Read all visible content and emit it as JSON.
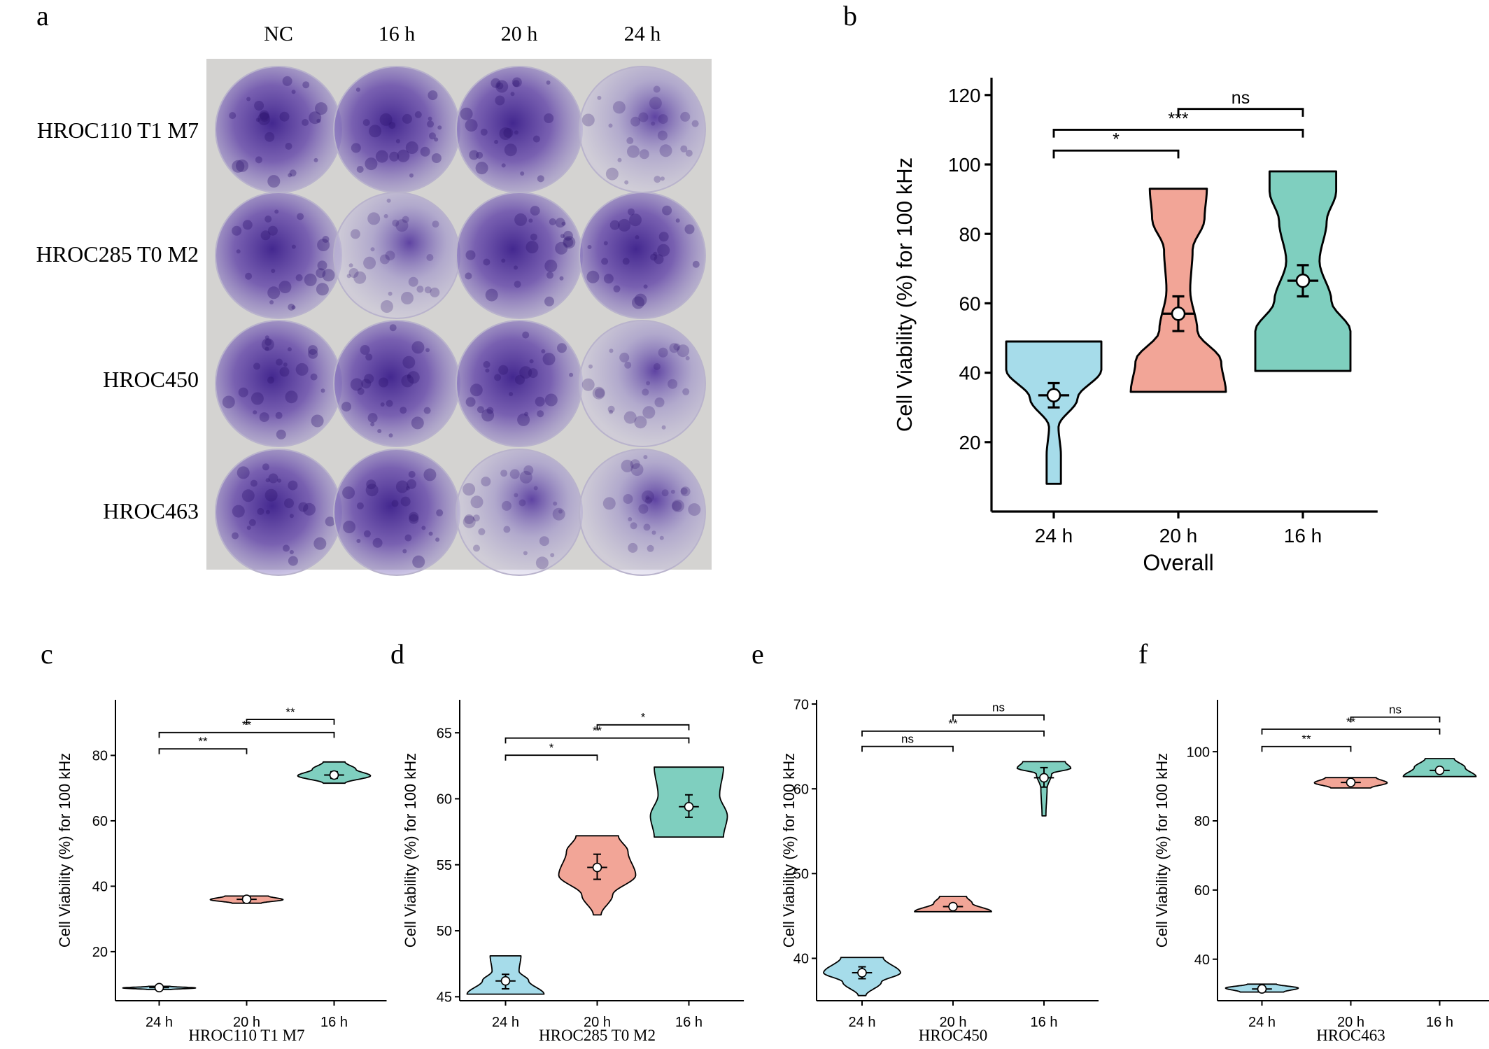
{
  "panel_letters": [
    "a",
    "b",
    "c",
    "d",
    "e",
    "f"
  ],
  "photo": {
    "columns": [
      "NC",
      "16 h",
      "20 h",
      "24 h"
    ],
    "rows": [
      "HROC110 T1 M7",
      "HROC285 T0 M2",
      "HROC450",
      "HROC463"
    ],
    "well_color": "#4a2a9a"
  },
  "colors": {
    "24 h": "#a6dcea",
    "20 h": "#f2a597",
    "16 h": "#7fcfbf"
  },
  "chart_data": [
    {
      "id": "b",
      "type": "violin",
      "categories": [
        "24 h",
        "20 h",
        "16 h"
      ],
      "ylabel": "Cell Viability (%) for 100 kHz",
      "xlabel": "Overall",
      "ylim": [
        0,
        125
      ],
      "yticks": [
        20,
        40,
        60,
        80,
        100,
        120
      ],
      "violins": [
        {
          "min": 8,
          "max": 49,
          "mean": 33.5,
          "lo": 30,
          "hi": 37,
          "shape": [
            [
              0,
              0.15
            ],
            [
              0.2,
              0.15
            ],
            [
              0.4,
              0.1
            ],
            [
              0.6,
              0.5
            ],
            [
              0.8,
              1.0
            ],
            [
              1,
              1.0
            ]
          ]
        },
        {
          "min": 34.5,
          "max": 93,
          "mean": 57,
          "lo": 52,
          "hi": 62,
          "shape": [
            [
              0,
              1.0
            ],
            [
              0.15,
              0.9
            ],
            [
              0.3,
              0.4
            ],
            [
              0.5,
              0.25
            ],
            [
              0.7,
              0.3
            ],
            [
              0.85,
              0.55
            ],
            [
              1,
              0.6
            ]
          ]
        },
        {
          "min": 40.5,
          "max": 98,
          "mean": 66.5,
          "lo": 62,
          "hi": 71,
          "shape": [
            [
              0,
              1.0
            ],
            [
              0.2,
              1.0
            ],
            [
              0.35,
              0.6
            ],
            [
              0.55,
              0.35
            ],
            [
              0.75,
              0.5
            ],
            [
              0.9,
              0.7
            ],
            [
              1,
              0.7
            ]
          ]
        }
      ],
      "significance": [
        {
          "from": 1,
          "to": 2,
          "label": "ns",
          "y": 116
        },
        {
          "from": 0,
          "to": 2,
          "label": "***",
          "y": 110
        },
        {
          "from": 0,
          "to": 1,
          "label": "*",
          "y": 104
        }
      ]
    },
    {
      "id": "c",
      "type": "violin",
      "categories": [
        "24 h",
        "20 h",
        "16 h"
      ],
      "ylabel": "Cell Viability (%) for 100 kHz",
      "xlabel": "HROC110 T1 M7",
      "ylim": [
        5,
        97
      ],
      "yticks": [
        20,
        40,
        60,
        80
      ],
      "violins": [
        {
          "min": 8.4,
          "max": 9.4,
          "mean": 9,
          "lo": 8.7,
          "hi": 9.3,
          "shape": [
            [
              0,
              0.3
            ],
            [
              0.5,
              1.0
            ],
            [
              1,
              0.3
            ]
          ]
        },
        {
          "min": 34.8,
          "max": 37,
          "mean": 36,
          "lo": 35.6,
          "hi": 36.4,
          "shape": [
            [
              0,
              0.4
            ],
            [
              0.5,
              1.0
            ],
            [
              1,
              0.6
            ]
          ]
        },
        {
          "min": 71.5,
          "max": 78,
          "mean": 74,
          "lo": 73,
          "hi": 75,
          "shape": [
            [
              0,
              0.3
            ],
            [
              0.35,
              1.0
            ],
            [
              0.65,
              0.6
            ],
            [
              1,
              0.3
            ]
          ]
        }
      ],
      "significance": [
        {
          "from": 1,
          "to": 2,
          "label": "**",
          "y": 91
        },
        {
          "from": 0,
          "to": 2,
          "label": "**",
          "y": 87
        },
        {
          "from": 0,
          "to": 1,
          "label": "**",
          "y": 82
        }
      ]
    },
    {
      "id": "d",
      "type": "violin",
      "categories": [
        "24 h",
        "20 h",
        "16 h"
      ],
      "ylabel": "Cell Viability (%) for 100 kHz",
      "xlabel": "HROC285 T0 M2",
      "ylim": [
        44.7,
        67.5
      ],
      "yticks": [
        45,
        50,
        55,
        60,
        65
      ],
      "violins": [
        {
          "min": 45.2,
          "max": 48.1,
          "mean": 46.2,
          "lo": 45.6,
          "hi": 46.7,
          "shape": [
            [
              0,
              1.0
            ],
            [
              0.35,
              0.6
            ],
            [
              0.6,
              0.35
            ],
            [
              1,
              0.4
            ]
          ]
        },
        {
          "min": 51.2,
          "max": 57.2,
          "mean": 54.8,
          "lo": 53.9,
          "hi": 55.8,
          "shape": [
            [
              0,
              0.1
            ],
            [
              0.25,
              0.4
            ],
            [
              0.5,
              1.0
            ],
            [
              0.8,
              0.8
            ],
            [
              1,
              0.55
            ]
          ]
        },
        {
          "min": 57.1,
          "max": 62.4,
          "mean": 59.4,
          "lo": 58.6,
          "hi": 60.3,
          "shape": [
            [
              0,
              0.9
            ],
            [
              0.3,
              1.0
            ],
            [
              0.6,
              0.8
            ],
            [
              1,
              0.9
            ]
          ]
        }
      ],
      "significance": [
        {
          "from": 1,
          "to": 2,
          "label": "*",
          "y": 65.6
        },
        {
          "from": 0,
          "to": 2,
          "label": "**",
          "y": 64.6
        },
        {
          "from": 0,
          "to": 1,
          "label": "*",
          "y": 63.3
        }
      ]
    },
    {
      "id": "e",
      "type": "violin",
      "categories": [
        "24 h",
        "20 h",
        "16 h"
      ],
      "ylabel": "Cell Viability (%) for 100 kHz",
      "xlabel": "HROC450",
      "ylim": [
        35,
        70.5
      ],
      "yticks": [
        40,
        50,
        60,
        70
      ],
      "violins": [
        {
          "min": 35.6,
          "max": 40.1,
          "mean": 38.3,
          "lo": 37.6,
          "hi": 39,
          "shape": [
            [
              0,
              0.1
            ],
            [
              0.35,
              0.5
            ],
            [
              0.6,
              1.0
            ],
            [
              1,
              0.55
            ]
          ]
        },
        {
          "min": 45.5,
          "max": 47.3,
          "mean": 46.1,
          "lo": 45.8,
          "hi": 46.4,
          "shape": [
            [
              0,
              1.0
            ],
            [
              0.55,
              0.5
            ],
            [
              1,
              0.35
            ]
          ]
        },
        {
          "min": 56.8,
          "max": 63.2,
          "mean": 61.3,
          "lo": 60.2,
          "hi": 62.5,
          "shape": [
            [
              0,
              0.05
            ],
            [
              0.5,
              0.08
            ],
            [
              0.78,
              0.2
            ],
            [
              0.88,
              0.7
            ],
            [
              1,
              0.55
            ]
          ]
        }
      ],
      "significance": [
        {
          "from": 1,
          "to": 2,
          "label": "ns",
          "y": 68.7
        },
        {
          "from": 0,
          "to": 2,
          "label": "**",
          "y": 66.8
        },
        {
          "from": 0,
          "to": 1,
          "label": "ns",
          "y": 65
        }
      ]
    },
    {
      "id": "f",
      "type": "violin",
      "categories": [
        "24 h",
        "20 h",
        "16 h"
      ],
      "ylabel": "Cell Viability (%) for 100 kHz",
      "xlabel": "HROC463",
      "ylim": [
        28,
        115
      ],
      "yticks": [
        40,
        60,
        80,
        100
      ],
      "violins": [
        {
          "min": 30.5,
          "max": 32.8,
          "mean": 31.4,
          "lo": 31,
          "hi": 31.9,
          "shape": [
            [
              0,
              0.6
            ],
            [
              0.5,
              1.0
            ],
            [
              1,
              0.4
            ]
          ]
        },
        {
          "min": 89.5,
          "max": 92.5,
          "mean": 91.1,
          "lo": 90.6,
          "hi": 91.6,
          "shape": [
            [
              0,
              0.55
            ],
            [
              0.5,
              1.0
            ],
            [
              1,
              0.7
            ]
          ]
        },
        {
          "min": 92.8,
          "max": 98,
          "mean": 94.6,
          "lo": 94,
          "hi": 95.2,
          "shape": [
            [
              0,
              1.0
            ],
            [
              0.5,
              0.7
            ],
            [
              1,
              0.4
            ]
          ]
        }
      ],
      "significance": [
        {
          "from": 1,
          "to": 2,
          "label": "ns",
          "y": 110
        },
        {
          "from": 0,
          "to": 2,
          "label": "**",
          "y": 106.5
        },
        {
          "from": 0,
          "to": 1,
          "label": "**",
          "y": 101.5
        }
      ]
    }
  ]
}
